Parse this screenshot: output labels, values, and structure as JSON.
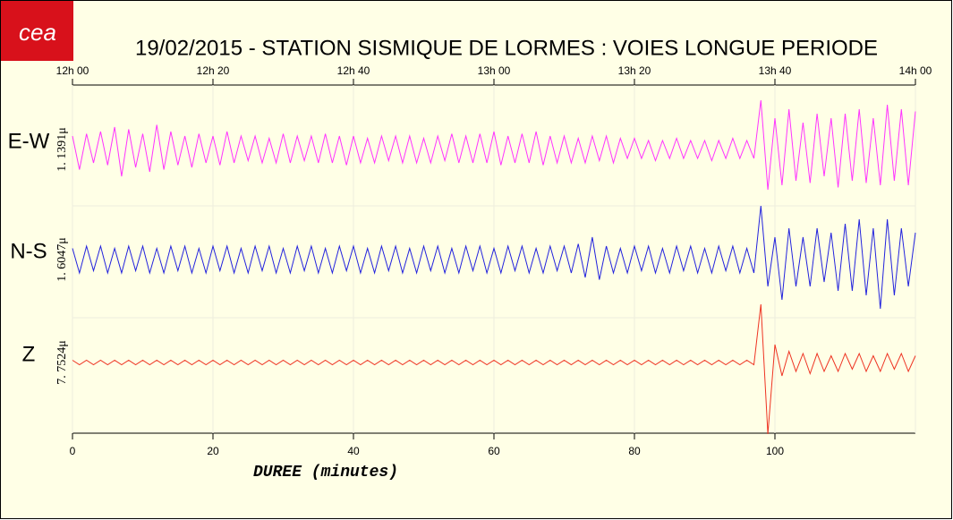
{
  "chart_data": {
    "type": "seismogram",
    "logo": "cea",
    "title": "19/02/2015  -  STATION SISMIQUE DE LORMES : VOIES LONGUE PERIODE",
    "xlabel": "DUREE (minutes)",
    "xlim": [
      0,
      120
    ],
    "xticks": [
      0,
      20,
      40,
      60,
      80,
      100
    ],
    "top_xticks": [
      {
        "value": 0,
        "label": "12h 00"
      },
      {
        "value": 20,
        "label": "12h 20"
      },
      {
        "value": 40,
        "label": "12h 40"
      },
      {
        "value": 60,
        "label": "13h 00"
      },
      {
        "value": 80,
        "label": "13h 20"
      },
      {
        "value": 100,
        "label": "13h 40"
      },
      {
        "value": 120,
        "label": "14h 00"
      }
    ],
    "grid": true,
    "x": [
      0,
      1,
      2,
      3,
      4,
      5,
      6,
      7,
      8,
      9,
      10,
      11,
      12,
      13,
      14,
      15,
      16,
      17,
      18,
      19,
      20,
      21,
      22,
      23,
      24,
      25,
      26,
      27,
      28,
      29,
      30,
      31,
      32,
      33,
      34,
      35,
      36,
      37,
      38,
      39,
      40,
      41,
      42,
      43,
      44,
      45,
      46,
      47,
      48,
      49,
      50,
      51,
      52,
      53,
      54,
      55,
      56,
      57,
      58,
      59,
      60,
      61,
      62,
      63,
      64,
      65,
      66,
      67,
      68,
      69,
      70,
      71,
      72,
      73,
      74,
      75,
      76,
      77,
      78,
      79,
      80,
      81,
      82,
      83,
      84,
      85,
      86,
      87,
      88,
      89,
      90,
      91,
      92,
      93,
      94,
      95,
      96,
      97,
      98,
      99,
      100,
      101,
      102,
      103,
      104,
      105,
      106,
      107,
      108,
      109,
      110,
      111,
      112,
      113,
      114,
      115,
      116,
      117,
      118,
      119,
      120
    ],
    "series": [
      {
        "name": "E-W",
        "scale_label": "1. 1391μ",
        "color": "#ff33ff",
        "values": [
          0.3,
          -0.45,
          0.35,
          -0.3,
          0.4,
          -0.35,
          0.5,
          -0.6,
          0.45,
          -0.4,
          0.35,
          -0.5,
          0.55,
          -0.45,
          0.4,
          -0.35,
          0.3,
          -0.4,
          0.35,
          -0.3,
          0.3,
          -0.35,
          0.4,
          -0.3,
          0.3,
          -0.25,
          0.3,
          -0.3,
          0.25,
          -0.3,
          0.35,
          -0.3,
          0.3,
          -0.25,
          0.3,
          -0.3,
          0.35,
          -0.3,
          0.3,
          -0.35,
          0.3,
          -0.3,
          0.25,
          -0.3,
          0.3,
          -0.25,
          0.3,
          -0.3,
          0.3,
          -0.3,
          0.25,
          -0.3,
          0.3,
          -0.25,
          0.35,
          -0.3,
          0.3,
          -0.3,
          0.35,
          -0.3,
          0.4,
          -0.35,
          0.3,
          -0.3,
          0.35,
          -0.3,
          0.4,
          -0.35,
          0.3,
          -0.3,
          0.3,
          -0.3,
          0.25,
          -0.3,
          0.3,
          -0.25,
          0.3,
          -0.3,
          0.25,
          -0.2,
          0.25,
          -0.2,
          0.2,
          -0.25,
          0.2,
          -0.2,
          0.25,
          -0.2,
          0.2,
          -0.2,
          0.2,
          -0.25,
          0.2,
          -0.2,
          0.25,
          -0.2,
          0.2,
          -0.2,
          1.1,
          -0.9,
          0.7,
          -0.8,
          0.9,
          -0.7,
          0.6,
          -0.75,
          0.8,
          -0.6,
          0.7,
          -0.85,
          0.8,
          -0.7,
          0.9,
          -0.75,
          0.7,
          -0.8,
          1.0,
          -0.7,
          0.9,
          -0.8,
          0.85
        ]
      },
      {
        "name": "N-S",
        "scale_label": "1. 6047μ",
        "color": "#2222dd",
        "values": [
          0.25,
          -0.3,
          0.3,
          -0.25,
          0.3,
          -0.3,
          0.25,
          -0.3,
          0.3,
          -0.25,
          0.3,
          -0.3,
          0.25,
          -0.3,
          0.3,
          -0.25,
          0.3,
          -0.3,
          0.25,
          -0.3,
          0.3,
          -0.25,
          0.3,
          -0.3,
          0.25,
          -0.3,
          0.3,
          -0.25,
          0.3,
          -0.3,
          0.25,
          -0.3,
          0.3,
          -0.25,
          0.3,
          -0.3,
          0.25,
          -0.3,
          0.3,
          -0.25,
          0.3,
          -0.3,
          0.25,
          -0.3,
          0.3,
          -0.25,
          0.3,
          -0.3,
          0.25,
          -0.3,
          0.3,
          -0.25,
          0.3,
          -0.3,
          0.25,
          -0.3,
          0.3,
          -0.25,
          0.3,
          -0.3,
          0.25,
          -0.3,
          0.3,
          -0.25,
          0.3,
          -0.3,
          0.25,
          -0.3,
          0.3,
          -0.25,
          0.3,
          -0.3,
          0.35,
          -0.4,
          0.5,
          -0.45,
          0.3,
          -0.3,
          0.25,
          -0.3,
          0.3,
          -0.25,
          0.3,
          -0.3,
          0.25,
          -0.3,
          0.3,
          -0.25,
          0.3,
          -0.3,
          0.25,
          -0.3,
          0.3,
          -0.25,
          0.3,
          -0.3,
          0.25,
          -0.3,
          1.2,
          -0.6,
          0.5,
          -0.9,
          0.7,
          -0.6,
          0.5,
          -0.6,
          0.7,
          -0.5,
          0.6,
          -0.7,
          0.8,
          -0.7,
          0.9,
          -0.8,
          0.7,
          -1.1,
          0.9,
          -0.8,
          0.7,
          -0.6,
          0.6
        ]
      },
      {
        "name": "Z",
        "scale_label": "7. 7524μ",
        "color": "#ee3322",
        "values": [
          0.05,
          -0.05,
          0.05,
          -0.05,
          0.05,
          -0.05,
          0.05,
          -0.05,
          0.05,
          -0.05,
          0.05,
          -0.05,
          0.05,
          -0.05,
          0.05,
          -0.05,
          0.05,
          -0.05,
          0.05,
          -0.05,
          0.05,
          -0.05,
          0.05,
          -0.05,
          0.05,
          -0.05,
          0.05,
          -0.05,
          0.05,
          -0.05,
          0.05,
          -0.05,
          0.05,
          -0.05,
          0.05,
          -0.05,
          0.05,
          -0.05,
          0.05,
          -0.05,
          0.05,
          -0.05,
          0.05,
          -0.05,
          0.05,
          -0.05,
          0.05,
          -0.05,
          0.05,
          -0.05,
          0.05,
          -0.05,
          0.05,
          -0.05,
          0.05,
          -0.05,
          0.05,
          -0.05,
          0.05,
          -0.05,
          0.05,
          -0.05,
          0.05,
          -0.05,
          0.05,
          -0.05,
          0.05,
          -0.05,
          0.05,
          -0.05,
          0.05,
          -0.05,
          0.05,
          -0.05,
          0.05,
          -0.05,
          0.05,
          -0.05,
          0.05,
          -0.05,
          0.05,
          -0.05,
          0.05,
          -0.05,
          0.05,
          -0.05,
          0.05,
          -0.05,
          0.05,
          -0.05,
          0.05,
          -0.05,
          0.05,
          -0.05,
          0.05,
          -0.05,
          0.05,
          -0.05,
          1.3,
          -1.6,
          0.4,
          -0.3,
          0.25,
          -0.2,
          0.2,
          -0.25,
          0.2,
          -0.2,
          0.15,
          -0.2,
          0.2,
          -0.15,
          0.2,
          -0.2,
          0.15,
          -0.2,
          0.2,
          -0.15,
          0.2,
          -0.2,
          0.15
        ]
      }
    ]
  }
}
